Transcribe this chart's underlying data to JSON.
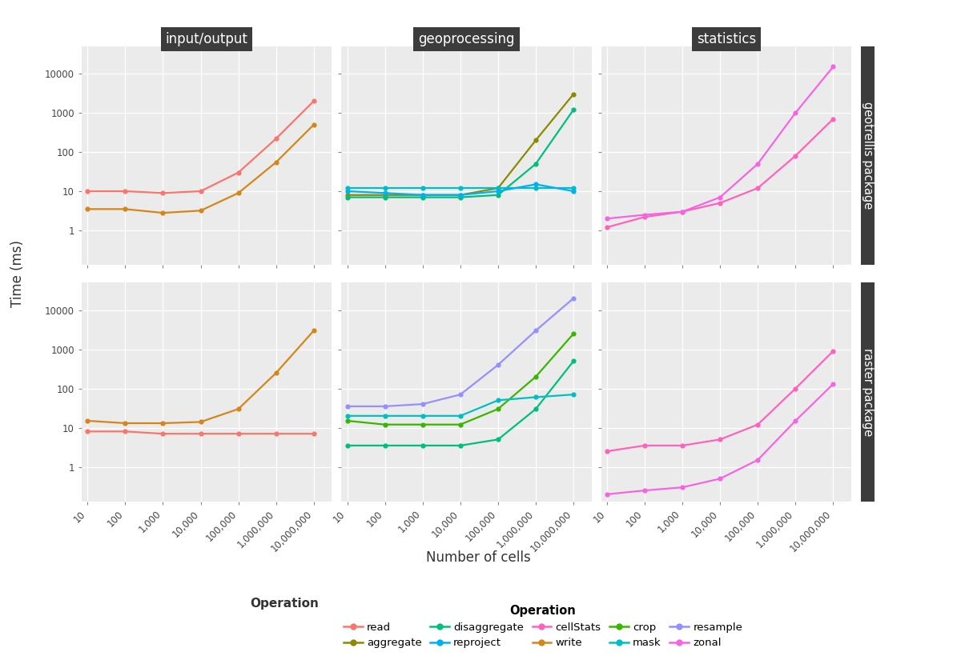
{
  "x_values": [
    10,
    100,
    1000,
    10000,
    100000,
    1000000,
    10000000
  ],
  "col_labels": [
    "input/output",
    "geoprocessing",
    "statistics"
  ],
  "row_labels": [
    "geotrellis package",
    "raster package"
  ],
  "background_color": "#EBEBEB",
  "header_color": "#3C3C3C",
  "series": {
    "read": {
      "color": "#F8766D",
      "geotrellis_io": [
        10,
        10,
        9,
        10,
        30,
        220,
        2000
      ],
      "raster_io": [
        8,
        8,
        7,
        7,
        7,
        7,
        7
      ]
    },
    "write": {
      "color": "#D4861A",
      "geotrellis_io": [
        3.5,
        3.5,
        2.8,
        3.2,
        9,
        55,
        500
      ],
      "raster_io": [
        15,
        13,
        13,
        14,
        30,
        250,
        3000
      ]
    },
    "aggregate": {
      "color": "#8B8B00",
      "geotrellis_geo": [
        8,
        8,
        8,
        8,
        12,
        200,
        3000
      ],
      "raster_geo": [
        null,
        null,
        null,
        null,
        null,
        null,
        null
      ]
    },
    "crop": {
      "color": "#39B600",
      "geotrellis_geo": [
        null,
        null,
        null,
        null,
        null,
        null,
        null
      ],
      "raster_geo": [
        15,
        12,
        12,
        12,
        30,
        200,
        2500
      ]
    },
    "disaggregate": {
      "color": "#00BF7D",
      "geotrellis_geo": [
        7,
        7,
        7,
        7,
        8,
        50,
        1200
      ],
      "raster_geo": [
        3.5,
        3.5,
        3.5,
        3.5,
        5,
        30,
        500
      ]
    },
    "mask": {
      "color": "#00BFC4",
      "geotrellis_geo": [
        12,
        12,
        12,
        12,
        12,
        12,
        12
      ],
      "raster_geo": [
        20,
        20,
        20,
        20,
        50,
        60,
        70
      ]
    },
    "reproject": {
      "color": "#00B0F6",
      "geotrellis_geo": [
        10,
        9,
        8,
        8,
        10,
        15,
        10
      ],
      "raster_geo": [
        null,
        null,
        null,
        null,
        null,
        null,
        null
      ]
    },
    "resample": {
      "color": "#9590FF",
      "geotrellis_geo": [
        null,
        null,
        null,
        null,
        null,
        null,
        null
      ],
      "raster_geo": [
        35,
        35,
        40,
        70,
        400,
        3000,
        20000
      ]
    },
    "cellStats": {
      "color": "#FF62BC",
      "geotrellis_stat": [
        1.2,
        2.2,
        3,
        5,
        12,
        80,
        700
      ],
      "raster_stat": [
        2.5,
        3.5,
        3.5,
        5,
        12,
        100,
        900
      ]
    },
    "zonal": {
      "color": "#F564E3",
      "geotrellis_stat": [
        2,
        2.5,
        3,
        7,
        50,
        1000,
        15000
      ],
      "raster_stat": [
        0.2,
        0.25,
        0.3,
        0.5,
        1.5,
        15,
        130
      ]
    }
  },
  "panel_series": {
    "0_0": [
      "read",
      "write"
    ],
    "0_1": [
      "aggregate",
      "disaggregate",
      "mask",
      "reproject"
    ],
    "0_2": [
      "cellStats",
      "zonal"
    ],
    "1_0": [
      "read",
      "write"
    ],
    "1_1": [
      "crop",
      "disaggregate",
      "mask",
      "resample"
    ],
    "1_2": [
      "cellStats",
      "zonal"
    ]
  },
  "panel_keys": {
    "0_0": [
      "geotrellis_io",
      "geotrellis_io"
    ],
    "0_1": [
      "geotrellis_geo",
      "geotrellis_geo",
      "geotrellis_geo",
      "geotrellis_geo"
    ],
    "0_2": [
      "geotrellis_stat",
      "geotrellis_stat"
    ],
    "1_0": [
      "raster_io",
      "raster_io"
    ],
    "1_1": [
      "raster_geo",
      "raster_geo",
      "raster_geo",
      "raster_geo"
    ],
    "1_2": [
      "raster_stat",
      "raster_stat"
    ]
  },
  "ylabel": "Time (ms)",
  "xlabel": "Number of cells",
  "legend_title": "Operation",
  "ylim": [
    0.13,
    50000
  ],
  "yticks": [
    1,
    10,
    100,
    1000,
    10000
  ],
  "ytick_labels": [
    "1",
    "10",
    "100",
    "1000",
    "10000"
  ],
  "xtick_labels": [
    "10",
    "100",
    "1,000",
    "10,000",
    "100,000",
    "1,000,000",
    "10,000,000"
  ],
  "legend_rows": [
    [
      [
        "read",
        "#F8766D"
      ],
      [
        "aggregate",
        "#8B8B00"
      ],
      [
        "disaggregate",
        "#00BF7D"
      ],
      [
        "reproject",
        "#00B0F6"
      ],
      [
        "cellStats",
        "#FF62BC"
      ]
    ],
    [
      [
        "write",
        "#D4861A"
      ],
      [
        "crop",
        "#39B600"
      ],
      [
        "mask",
        "#00BFC4"
      ],
      [
        "resample",
        "#9590FF"
      ],
      [
        "zonal",
        "#F564E3"
      ]
    ]
  ]
}
